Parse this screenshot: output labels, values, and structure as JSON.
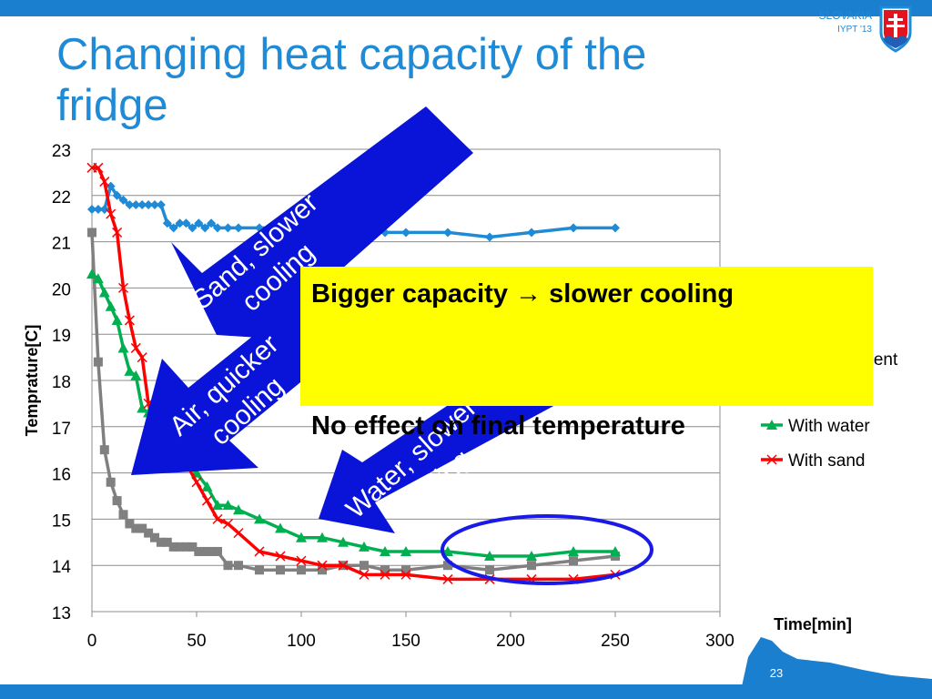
{
  "slide": {
    "title": "Changing heat capacity of the fridge",
    "brand_line1": "SLOVAKIA",
    "brand_line2": "IYPT '13",
    "page_number": "23",
    "accent_color": "#1b7fd0"
  },
  "callout": {
    "line1": "Bigger capacity → slower cooling",
    "line2": "No effect on final temperature",
    "background": "#ffff00"
  },
  "annotations": [
    {
      "text": "Sand, slower cooling",
      "color": "#0a14d8"
    },
    {
      "text": "Air, quicker cooling",
      "color": "#0a14d8"
    },
    {
      "text": "Water, slower cooling",
      "color": "#0a14d8"
    }
  ],
  "chart_data": {
    "type": "line",
    "xlabel": "Time[min]",
    "ylabel": "Temprature[C]",
    "xlim": [
      0,
      300
    ],
    "ylim": [
      13,
      23
    ],
    "xticks": [
      0,
      50,
      100,
      150,
      200,
      250,
      300
    ],
    "yticks": [
      13,
      14,
      15,
      16,
      17,
      18,
      19,
      20,
      21,
      22,
      23
    ],
    "grid": "horizontal",
    "legend_position": "right",
    "series": [
      {
        "name": "ment",
        "color": "#1f8ad6",
        "marker": "diamond",
        "x": [
          0,
          3,
          6,
          9,
          12,
          15,
          18,
          21,
          24,
          27,
          30,
          33,
          36,
          39,
          42,
          45,
          48,
          51,
          54,
          57,
          60,
          65,
          70,
          80,
          90,
          100,
          110,
          120,
          130,
          140,
          150,
          170,
          190,
          210,
          230,
          250
        ],
        "y": [
          21.7,
          21.7,
          21.7,
          22.2,
          22.0,
          21.9,
          21.8,
          21.8,
          21.8,
          21.8,
          21.8,
          21.8,
          21.4,
          21.3,
          21.4,
          21.4,
          21.3,
          21.4,
          21.3,
          21.4,
          21.3,
          21.3,
          21.3,
          21.3,
          21.3,
          21.3,
          21.3,
          21.3,
          21.3,
          21.2,
          21.2,
          21.2,
          21.1,
          21.2,
          21.3,
          21.3
        ]
      },
      {
        "name": "",
        "color": "#808080",
        "marker": "square",
        "x": [
          0,
          3,
          6,
          9,
          12,
          15,
          18,
          21,
          24,
          27,
          30,
          33,
          36,
          39,
          42,
          45,
          48,
          51,
          54,
          57,
          60,
          65,
          70,
          80,
          90,
          100,
          110,
          120,
          130,
          140,
          150,
          170,
          190,
          210,
          230,
          250
        ],
        "y": [
          21.2,
          18.4,
          16.5,
          15.8,
          15.4,
          15.1,
          14.9,
          14.8,
          14.8,
          14.7,
          14.6,
          14.5,
          14.5,
          14.4,
          14.4,
          14.4,
          14.4,
          14.3,
          14.3,
          14.3,
          14.3,
          14.0,
          14.0,
          13.9,
          13.9,
          13.9,
          13.9,
          14.0,
          14.0,
          13.9,
          13.9,
          14.0,
          13.9,
          14.0,
          14.1,
          14.2
        ]
      },
      {
        "name": "With water",
        "color": "#00b050",
        "marker": "triangle",
        "x": [
          0,
          3,
          6,
          9,
          12,
          15,
          18,
          21,
          24,
          27,
          30,
          33,
          36,
          40,
          45,
          50,
          55,
          60,
          65,
          70,
          80,
          90,
          100,
          110,
          120,
          130,
          140,
          150,
          170,
          190,
          210,
          230,
          250
        ],
        "y": [
          20.3,
          20.2,
          19.9,
          19.6,
          19.3,
          18.7,
          18.2,
          18.1,
          17.4,
          17.3,
          17.1,
          17.0,
          16.8,
          16.6,
          16.2,
          16.0,
          15.7,
          15.3,
          15.3,
          15.2,
          15.0,
          14.8,
          14.6,
          14.6,
          14.5,
          14.4,
          14.3,
          14.3,
          14.3,
          14.2,
          14.2,
          14.3,
          14.3
        ]
      },
      {
        "name": "With sand",
        "color": "#ff0000",
        "marker": "x",
        "x": [
          0,
          3,
          6,
          9,
          12,
          15,
          18,
          21,
          24,
          27,
          30,
          33,
          36,
          40,
          45,
          50,
          55,
          60,
          65,
          70,
          80,
          90,
          100,
          110,
          120,
          130,
          140,
          150,
          170,
          190,
          210,
          230,
          250
        ],
        "y": [
          22.6,
          22.6,
          22.3,
          21.6,
          21.2,
          20.0,
          19.3,
          18.7,
          18.5,
          17.5,
          17.0,
          16.9,
          16.7,
          16.5,
          16.2,
          15.8,
          15.4,
          15.0,
          14.9,
          14.7,
          14.3,
          14.2,
          14.1,
          14.0,
          14.0,
          13.8,
          13.8,
          13.8,
          13.7,
          13.7,
          13.7,
          13.7,
          13.8
        ]
      }
    ]
  }
}
